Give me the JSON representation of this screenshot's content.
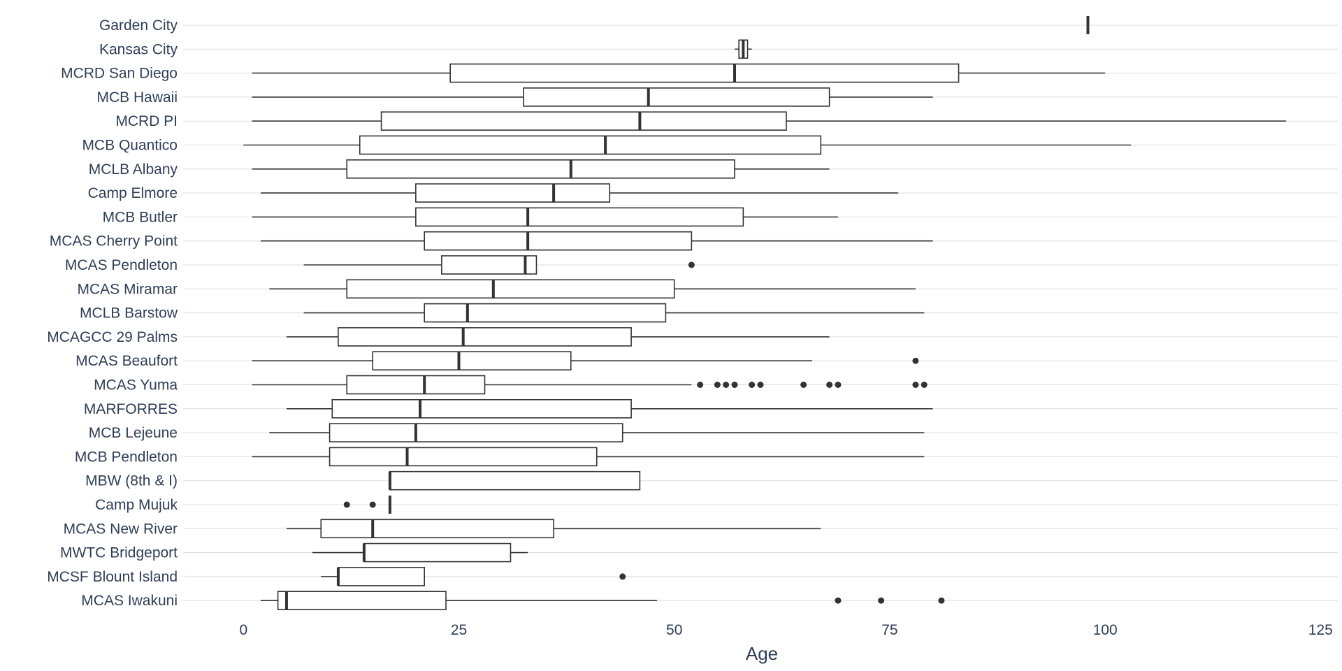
{
  "chart_data": {
    "type": "boxplot",
    "orientation": "horizontal",
    "title": "",
    "xlabel": "Age",
    "ylabel": "",
    "xlim": [
      -7,
      127
    ],
    "x_ticks": [
      0,
      25,
      50,
      75,
      100,
      125
    ],
    "grid": "horizontal major lines at each category",
    "legend": "none",
    "colors": {
      "box_stroke": "#333333",
      "box_fill": "#ffffff",
      "grid": "#dddddd",
      "text": "#2f3e55",
      "outlier": "#333333"
    },
    "categories": [
      "Garden City",
      "Kansas City",
      "MCRD San Diego",
      "MCB Hawaii",
      "MCRD PI",
      "MCB Quantico",
      "MCLB Albany",
      "Camp Elmore",
      "MCB Butler",
      "MCAS Cherry Point",
      "MCAS Pendleton",
      "MCAS Miramar",
      "MCLB Barstow",
      "MCAGCC 29 Palms",
      "MCAS Beaufort",
      "MCAS Yuma",
      "MARFORRES",
      "MCB Lejeune",
      "MCB Pendleton",
      "MBW (8th & I)",
      "Camp Mujuk",
      "MCAS New River",
      "MWTC Bridgeport",
      "MCSF Blount Island",
      "MCAS Iwakuni"
    ],
    "series": [
      {
        "category": "Garden City",
        "whisker_low": 98,
        "q1": 98,
        "median": 98,
        "q3": 98,
        "whisker_high": 98,
        "outliers": []
      },
      {
        "category": "Kansas City",
        "whisker_low": 57,
        "q1": 57.5,
        "median": 58,
        "q3": 58.5,
        "whisker_high": 59,
        "outliers": []
      },
      {
        "category": "MCRD San Diego",
        "whisker_low": 1,
        "q1": 24,
        "median": 57,
        "q3": 83,
        "whisker_high": 100,
        "outliers": []
      },
      {
        "category": "MCB Hawaii",
        "whisker_low": 1,
        "q1": 32.5,
        "median": 47,
        "q3": 68,
        "whisker_high": 80,
        "outliers": []
      },
      {
        "category": "MCRD PI",
        "whisker_low": 1,
        "q1": 16,
        "median": 46,
        "q3": 63,
        "whisker_high": 121,
        "outliers": []
      },
      {
        "category": "MCB Quantico",
        "whisker_low": 0,
        "q1": 13.5,
        "median": 42,
        "q3": 67,
        "whisker_high": 103,
        "outliers": []
      },
      {
        "category": "MCLB Albany",
        "whisker_low": 1,
        "q1": 12,
        "median": 38,
        "q3": 57,
        "whisker_high": 68,
        "outliers": []
      },
      {
        "category": "Camp Elmore",
        "whisker_low": 2,
        "q1": 20,
        "median": 36,
        "q3": 42.5,
        "whisker_high": 76,
        "outliers": []
      },
      {
        "category": "MCB Butler",
        "whisker_low": 1,
        "q1": 20,
        "median": 33,
        "q3": 58,
        "whisker_high": 69,
        "outliers": []
      },
      {
        "category": "MCAS Cherry Point",
        "whisker_low": 2,
        "q1": 21,
        "median": 33,
        "q3": 52,
        "whisker_high": 80,
        "outliers": []
      },
      {
        "category": "MCAS Pendleton",
        "whisker_low": 7,
        "q1": 23,
        "median": 32.7,
        "q3": 34,
        "whisker_high": 34,
        "outliers": [
          52
        ]
      },
      {
        "category": "MCAS Miramar",
        "whisker_low": 3,
        "q1": 12,
        "median": 29,
        "q3": 50,
        "whisker_high": 78,
        "outliers": []
      },
      {
        "category": "MCLB Barstow",
        "whisker_low": 7,
        "q1": 21,
        "median": 26,
        "q3": 49,
        "whisker_high": 79,
        "outliers": []
      },
      {
        "category": "MCAGCC 29 Palms",
        "whisker_low": 5,
        "q1": 11,
        "median": 25.5,
        "q3": 45,
        "whisker_high": 68,
        "outliers": []
      },
      {
        "category": "MCAS Beaufort",
        "whisker_low": 1,
        "q1": 15,
        "median": 25,
        "q3": 38,
        "whisker_high": 66,
        "outliers": [
          78
        ]
      },
      {
        "category": "MCAS Yuma",
        "whisker_low": 1,
        "q1": 12,
        "median": 21,
        "q3": 28,
        "whisker_high": 52,
        "outliers": [
          53,
          55,
          56,
          57,
          59,
          60,
          65,
          68,
          69,
          78,
          79
        ]
      },
      {
        "category": "MARFORRES",
        "whisker_low": 5,
        "q1": 10.3,
        "median": 20.5,
        "q3": 45,
        "whisker_high": 80,
        "outliers": []
      },
      {
        "category": "MCB Lejeune",
        "whisker_low": 3,
        "q1": 10,
        "median": 20,
        "q3": 44,
        "whisker_high": 79,
        "outliers": []
      },
      {
        "category": "MCB Pendleton",
        "whisker_low": 1,
        "q1": 10,
        "median": 19,
        "q3": 41,
        "whisker_high": 79,
        "outliers": []
      },
      {
        "category": "MBW (8th & I)",
        "whisker_low": 17,
        "q1": 17,
        "median": 17,
        "q3": 46,
        "whisker_high": 46,
        "outliers": []
      },
      {
        "category": "Camp Mujuk",
        "whisker_low": 17,
        "q1": 17,
        "median": 17,
        "q3": 17,
        "whisker_high": 17,
        "outliers": [
          12,
          15
        ]
      },
      {
        "category": "MCAS New River",
        "whisker_low": 5,
        "q1": 9,
        "median": 15,
        "q3": 36,
        "whisker_high": 67,
        "outliers": []
      },
      {
        "category": "MWTC Bridgeport",
        "whisker_low": 8,
        "q1": 14,
        "median": 14,
        "q3": 31,
        "whisker_high": 33,
        "outliers": []
      },
      {
        "category": "MCSF Blount Island",
        "whisker_low": 9,
        "q1": 11,
        "median": 11,
        "q3": 21,
        "whisker_high": 21,
        "outliers": [
          44
        ]
      },
      {
        "category": "MCAS Iwakuni",
        "whisker_low": 2,
        "q1": 4,
        "median": 5,
        "q3": 23.5,
        "whisker_high": 48,
        "outliers": [
          69,
          74,
          81
        ]
      }
    ]
  }
}
